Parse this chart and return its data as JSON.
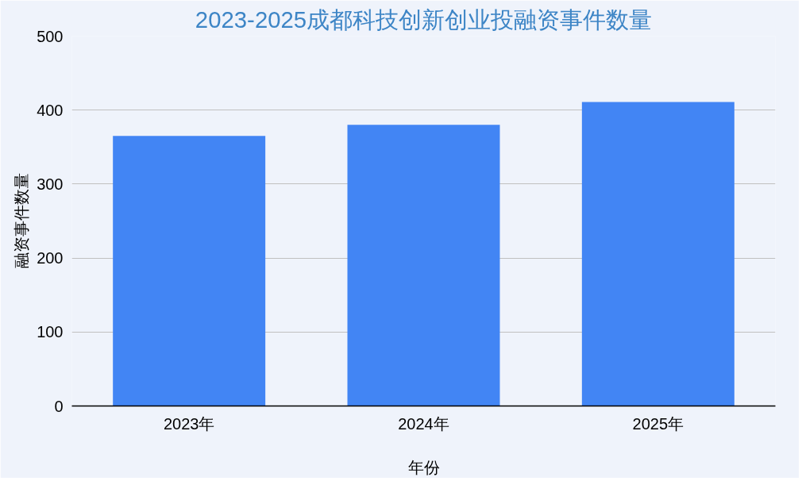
{
  "chart_data": {
    "type": "bar",
    "title": "2023-2025成都科技创新创业投融资事件数量",
    "xlabel": "年份",
    "ylabel": "融资事件数量",
    "categories": [
      "2023年",
      "2024年",
      "2025年"
    ],
    "series": [
      {
        "color": "#4285f4",
        "values": [
          365,
          380,
          411
        ]
      }
    ],
    "ylim": [
      0,
      500
    ],
    "yticks": [
      0,
      100,
      200,
      300,
      400,
      500
    ],
    "grid": "y"
  }
}
